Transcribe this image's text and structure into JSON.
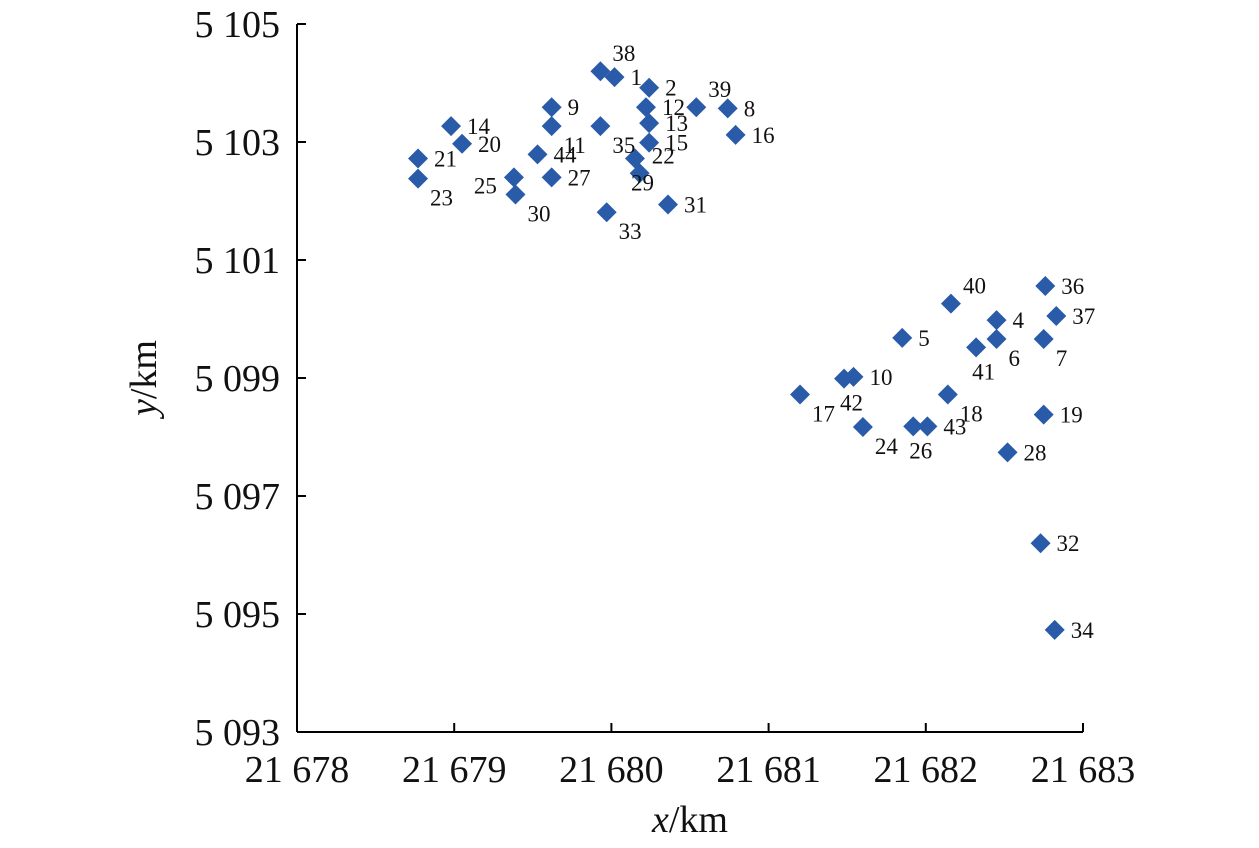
{
  "chart_data": {
    "type": "scatter",
    "title": "",
    "xlabel": {
      "var": "x",
      "unit": "/km"
    },
    "ylabel": {
      "var": "y",
      "unit": "/km"
    },
    "xlim": [
      21678,
      21683
    ],
    "ylim": [
      5093,
      5105
    ],
    "x_ticks": [
      21678,
      21679,
      21680,
      21681,
      21682,
      21683
    ],
    "x_tick_labels": [
      "21 678",
      "21 679",
      "21 680",
      "21 681",
      "21 682",
      "21 683"
    ],
    "y_ticks": [
      5093,
      5095,
      5097,
      5099,
      5101,
      5103,
      5105
    ],
    "y_tick_labels": [
      "5 093",
      "5 095",
      "5 097",
      "5 099",
      "5 101",
      "5 103",
      "5 105"
    ],
    "grid": false,
    "legend": "none",
    "marker": "diamond",
    "marker_color": "#2a5ba8",
    "points": [
      {
        "id": "1",
        "x": 21680.02,
        "y": 5104.1,
        "label_pos": "right"
      },
      {
        "id": "2",
        "x": 21680.24,
        "y": 5103.92,
        "label_pos": "right"
      },
      {
        "id": "4",
        "x": 21682.45,
        "y": 5099.98,
        "label_pos": "right"
      },
      {
        "id": "5",
        "x": 21681.85,
        "y": 5099.68,
        "label_pos": "right"
      },
      {
        "id": "6",
        "x": 21682.45,
        "y": 5099.66,
        "label_pos": "below-right"
      },
      {
        "id": "7",
        "x": 21682.75,
        "y": 5099.66,
        "label_pos": "below-right"
      },
      {
        "id": "8",
        "x": 21680.74,
        "y": 5103.57,
        "label_pos": "right"
      },
      {
        "id": "9",
        "x": 21679.62,
        "y": 5103.59,
        "label_pos": "right"
      },
      {
        "id": "10",
        "x": 21681.54,
        "y": 5099.02,
        "label_pos": "right"
      },
      {
        "id": "11",
        "x": 21679.62,
        "y": 5103.27,
        "label_pos": "below-right"
      },
      {
        "id": "12",
        "x": 21680.22,
        "y": 5103.59,
        "label_pos": "right"
      },
      {
        "id": "13",
        "x": 21680.24,
        "y": 5103.32,
        "label_pos": "right"
      },
      {
        "id": "14",
        "x": 21678.98,
        "y": 5103.27,
        "label_pos": "right"
      },
      {
        "id": "15",
        "x": 21680.24,
        "y": 5102.99,
        "label_pos": "right"
      },
      {
        "id": "16",
        "x": 21680.79,
        "y": 5103.12,
        "label_pos": "right"
      },
      {
        "id": "17",
        "x": 21681.2,
        "y": 5098.72,
        "label_pos": "below-right"
      },
      {
        "id": "18",
        "x": 21682.14,
        "y": 5098.72,
        "label_pos": "below-right"
      },
      {
        "id": "19",
        "x": 21682.75,
        "y": 5098.38,
        "label_pos": "right"
      },
      {
        "id": "20",
        "x": 21679.05,
        "y": 5102.97,
        "label_pos": "right"
      },
      {
        "id": "21",
        "x": 21678.77,
        "y": 5102.72,
        "label_pos": "right"
      },
      {
        "id": "22",
        "x": 21680.18,
        "y": 5102.47,
        "label_pos": "above-right"
      },
      {
        "id": "23",
        "x": 21678.77,
        "y": 5102.38,
        "label_pos": "below-right"
      },
      {
        "id": "24",
        "x": 21681.6,
        "y": 5098.17,
        "label_pos": "below-right"
      },
      {
        "id": "25",
        "x": 21679.38,
        "y": 5102.4,
        "label_pos": "below-left"
      },
      {
        "id": "26",
        "x": 21681.92,
        "y": 5098.18,
        "label_pos": "below"
      },
      {
        "id": "27",
        "x": 21679.62,
        "y": 5102.4,
        "label_pos": "right"
      },
      {
        "id": "28",
        "x": 21682.52,
        "y": 5097.74,
        "label_pos": "right"
      },
      {
        "id": "29",
        "x": 21680.15,
        "y": 5102.72,
        "label_pos": "below"
      },
      {
        "id": "30",
        "x": 21679.39,
        "y": 5102.11,
        "label_pos": "below-right"
      },
      {
        "id": "31",
        "x": 21680.36,
        "y": 5101.94,
        "label_pos": "right"
      },
      {
        "id": "32",
        "x": 21682.73,
        "y": 5096.2,
        "label_pos": "right"
      },
      {
        "id": "33",
        "x": 21679.97,
        "y": 5101.81,
        "label_pos": "below-right"
      },
      {
        "id": "34",
        "x": 21682.82,
        "y": 5094.73,
        "label_pos": "right"
      },
      {
        "id": "35",
        "x": 21679.93,
        "y": 5103.27,
        "label_pos": "below-right"
      },
      {
        "id": "36",
        "x": 21682.76,
        "y": 5100.56,
        "label_pos": "right"
      },
      {
        "id": "37",
        "x": 21682.83,
        "y": 5100.05,
        "label_pos": "right"
      },
      {
        "id": "38",
        "x": 21679.93,
        "y": 5104.2,
        "label_pos": "above-right"
      },
      {
        "id": "39",
        "x": 21680.54,
        "y": 5103.59,
        "label_pos": "above-right"
      },
      {
        "id": "40",
        "x": 21682.16,
        "y": 5100.26,
        "label_pos": "above-right"
      },
      {
        "id": "41",
        "x": 21682.32,
        "y": 5099.52,
        "label_pos": "below"
      },
      {
        "id": "42",
        "x": 21681.48,
        "y": 5098.99,
        "label_pos": "below"
      },
      {
        "id": "43",
        "x": 21682.01,
        "y": 5098.18,
        "label_pos": "right"
      },
      {
        "id": "44",
        "x": 21679.53,
        "y": 5102.79,
        "label_pos": "right"
      }
    ]
  }
}
